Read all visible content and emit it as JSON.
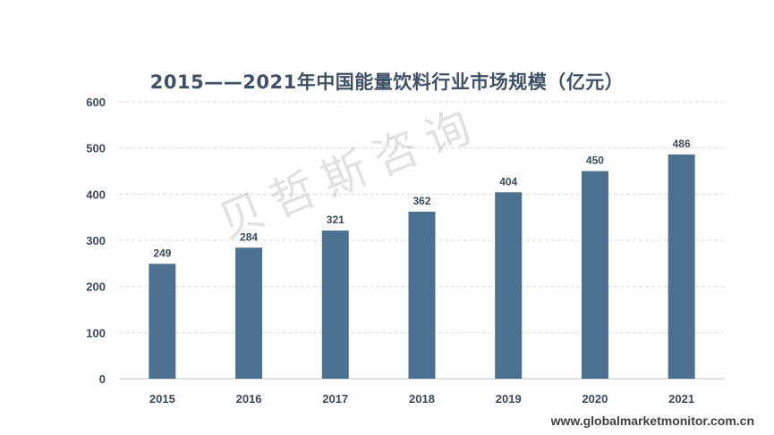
{
  "chart_data": {
    "type": "bar",
    "title": "2015——2021年中国能量饮料行业市场规模（亿元）",
    "categories": [
      "2015",
      "2016",
      "2017",
      "2018",
      "2019",
      "2020",
      "2021"
    ],
    "values": [
      249,
      284,
      321,
      362,
      404,
      450,
      486
    ],
    "ylim": [
      0,
      600
    ],
    "yticks": [
      0,
      100,
      200,
      300,
      400,
      500,
      600
    ],
    "xlabel": "",
    "ylabel": "",
    "grid": true,
    "legend": "none",
    "bar_color": "#4b7090"
  },
  "watermark": "贝哲斯咨询",
  "source": "www.globalmarketmonitor.com.cn"
}
